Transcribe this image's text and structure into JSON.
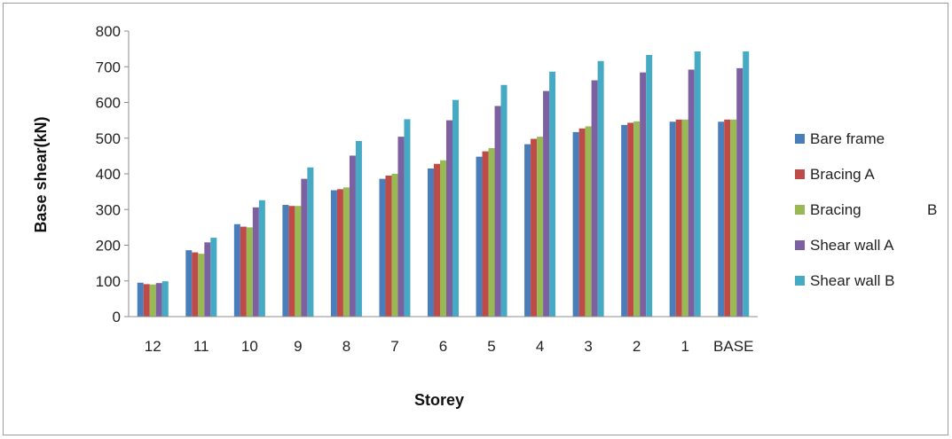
{
  "chart_data": {
    "type": "bar",
    "title": "",
    "xlabel": "Storey",
    "ylabel": "Base shear(kN)",
    "ylim": [
      0,
      800
    ],
    "yticks": [
      0,
      100,
      200,
      300,
      400,
      500,
      600,
      700,
      800
    ],
    "grid": false,
    "legend_position": "right",
    "categories": [
      "12",
      "11",
      "10",
      "9",
      "8",
      "7",
      "6",
      "5",
      "4",
      "3",
      "2",
      "1",
      "BASE"
    ],
    "series": [
      {
        "name": "Bare frame",
        "color": "#4a7ebb",
        "values": [
          95,
          186,
          259,
          313,
          354,
          386,
          415,
          448,
          483,
          517,
          537,
          546,
          546
        ]
      },
      {
        "name": "Bracing A",
        "color": "#be4b48",
        "values": [
          91,
          180,
          252,
          310,
          357,
          395,
          428,
          463,
          498,
          527,
          543,
          552,
          552
        ]
      },
      {
        "name": "Bracing",
        "name_suffix": "B",
        "color": "#98b954",
        "values": [
          90,
          176,
          250,
          310,
          362,
          400,
          438,
          472,
          504,
          533,
          547,
          552,
          552
        ]
      },
      {
        "name": "Shear wall A",
        "color": "#7d60a0",
        "values": [
          94,
          208,
          306,
          386,
          451,
          504,
          550,
          590,
          632,
          662,
          684,
          692,
          696
        ]
      },
      {
        "name": "Shear wall B",
        "color": "#46aac5",
        "values": [
          99,
          221,
          326,
          418,
          492,
          553,
          607,
          649,
          686,
          716,
          733,
          743,
          743
        ]
      }
    ]
  }
}
